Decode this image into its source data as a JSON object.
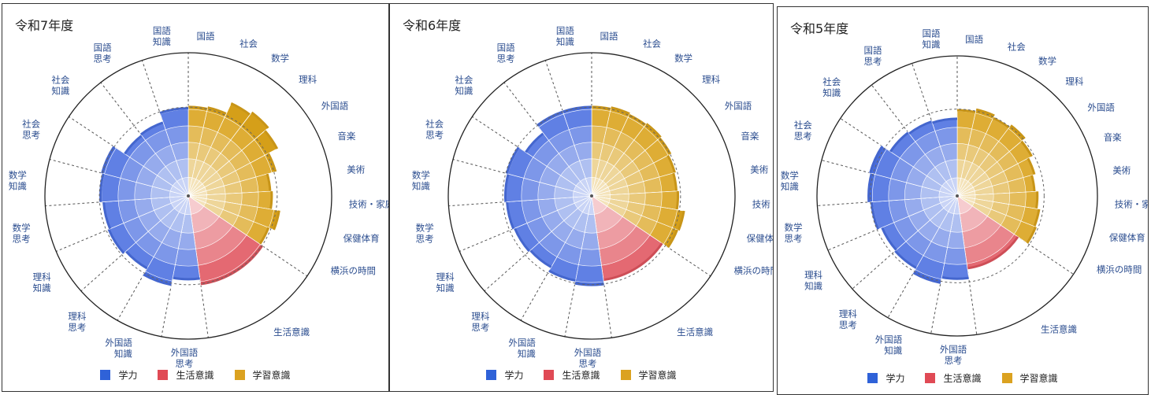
{
  "colors": {
    "gakuryoku": "#4a6fe0",
    "seikatsu": "#e0555f",
    "gakushu": "#d9a21a",
    "ring": "#222222",
    "label": "#2b4d8f"
  },
  "legend": [
    {
      "name": "学力",
      "color": "#2f62d8"
    },
    {
      "name": "生活意識",
      "color": "#e04a55"
    },
    {
      "name": "学習意識",
      "color": "#dba220"
    }
  ],
  "categories": [
    {
      "label": [
        "国語"
      ],
      "group": "gakushu"
    },
    {
      "label": [
        "社会"
      ],
      "group": "gakushu"
    },
    {
      "label": [
        "数学"
      ],
      "group": "gakushu"
    },
    {
      "label": [
        "理科"
      ],
      "group": "gakushu"
    },
    {
      "label": [
        "外国語"
      ],
      "group": "gakushu"
    },
    {
      "label": [
        "音楽"
      ],
      "group": "gakushu"
    },
    {
      "label": [
        "美術"
      ],
      "group": "gakushu"
    },
    {
      "label": [
        "技術・家庭"
      ],
      "group": "gakushu"
    },
    {
      "label": [
        "保健体育"
      ],
      "group": "gakushu"
    },
    {
      "label": [
        "横浜の時間"
      ],
      "group": "gakushu"
    },
    {
      "label": [
        "生活意識"
      ],
      "group": "seikatsu"
    },
    {
      "label": [
        "外国語",
        "思考"
      ],
      "group": "gakuryoku"
    },
    {
      "label": [
        "外国語",
        "知識"
      ],
      "group": "gakuryoku"
    },
    {
      "label": [
        "理科",
        "思考"
      ],
      "group": "gakuryoku"
    },
    {
      "label": [
        "理科",
        "知識"
      ],
      "group": "gakuryoku"
    },
    {
      "label": [
        "数学",
        "思考"
      ],
      "group": "gakuryoku"
    },
    {
      "label": [
        "数学",
        "知識"
      ],
      "group": "gakuryoku"
    },
    {
      "label": [
        "社会",
        "思考"
      ],
      "group": "gakuryoku"
    },
    {
      "label": [
        "社会",
        "知識"
      ],
      "group": "gakuryoku"
    },
    {
      "label": [
        "国語",
        "思考"
      ],
      "group": "gakuryoku"
    },
    {
      "label": [
        "国語",
        "知識"
      ],
      "group": "gakuryoku"
    }
  ],
  "chart_data": [
    {
      "type": "polar-area",
      "title": "令和7年度",
      "rmax": 100,
      "reference": 62,
      "series": [
        {
          "name": "学習意識",
          "segments": [
            {
              "category": "国語",
              "value": 63
            },
            {
              "category": "社会",
              "value": 64
            },
            {
              "category": "数学",
              "value": 72
            },
            {
              "category": "理科",
              "value": 74
            },
            {
              "category": "外国語",
              "value": 71
            },
            {
              "category": "音楽",
              "value": 64
            },
            {
              "category": "美術",
              "value": 58
            },
            {
              "category": "技術・家庭",
              "value": 59
            },
            {
              "category": "保健体育",
              "value": 65
            },
            {
              "category": "横浜の時間",
              "value": 61
            }
          ]
        },
        {
          "name": "生活意識",
          "segments": [
            {
              "category": "生活意識",
              "value": 63
            }
          ]
        },
        {
          "name": "学力",
          "segments": [
            {
              "category": "外国語思考",
              "value": 59
            },
            {
              "category": "外国語知識",
              "value": 64
            },
            {
              "category": "理科思考",
              "value": 59
            },
            {
              "category": "理科知識",
              "value": 61
            },
            {
              "category": "数学思考",
              "value": 60
            },
            {
              "category": "数学知識",
              "value": 62
            },
            {
              "category": "社会思考",
              "value": 63
            },
            {
              "category": "社会知識",
              "value": 54
            },
            {
              "category": "国語思考",
              "value": 55
            },
            {
              "category": "国語知識",
              "value": 62
            }
          ]
        }
      ]
    },
    {
      "type": "polar-area",
      "title": "令和6年度",
      "rmax": 100,
      "reference": 62,
      "series": [
        {
          "name": "学習意識",
          "segments": [
            {
              "category": "国語",
              "value": 63
            },
            {
              "category": "社会",
              "value": 64
            },
            {
              "category": "数学",
              "value": 63
            },
            {
              "category": "理科",
              "value": 64
            },
            {
              "category": "外国語",
              "value": 63
            },
            {
              "category": "音楽",
              "value": 61
            },
            {
              "category": "美術",
              "value": 60
            },
            {
              "category": "技術・家庭",
              "value": 61
            },
            {
              "category": "保健体育",
              "value": 66
            },
            {
              "category": "横浜の時間",
              "value": 65
            }
          ]
        },
        {
          "name": "生活意識",
          "segments": [
            {
              "category": "生活意識",
              "value": 60
            }
          ]
        },
        {
          "name": "学力",
          "segments": [
            {
              "category": "外国語思考",
              "value": 63
            },
            {
              "category": "外国語知識",
              "value": 61
            },
            {
              "category": "理科思考",
              "value": 58
            },
            {
              "category": "理科知識",
              "value": 59
            },
            {
              "category": "数学思考",
              "value": 60
            },
            {
              "category": "数学知識",
              "value": 61
            },
            {
              "category": "社会思考",
              "value": 62
            },
            {
              "category": "社会知識",
              "value": 56
            },
            {
              "category": "国語思考",
              "value": 63
            },
            {
              "category": "国語知識",
              "value": 63
            }
          ]
        }
      ]
    },
    {
      "type": "polar-area",
      "title": "令和5年度",
      "rmax": 100,
      "reference": 62,
      "series": [
        {
          "name": "学習意識",
          "segments": [
            {
              "category": "国語",
              "value": 62
            },
            {
              "category": "社会",
              "value": 64
            },
            {
              "category": "数学",
              "value": 62
            },
            {
              "category": "理科",
              "value": 64
            },
            {
              "category": "外国語",
              "value": 61
            },
            {
              "category": "音楽",
              "value": 58
            },
            {
              "category": "美術",
              "value": 56
            },
            {
              "category": "技術・家庭",
              "value": 58
            },
            {
              "category": "保健体育",
              "value": 60
            },
            {
              "category": "横浜の時間",
              "value": 61
            }
          ]
        },
        {
          "name": "生活意識",
          "segments": [
            {
              "category": "生活意識",
              "value": 53
            }
          ]
        },
        {
          "name": "学力",
          "segments": [
            {
              "category": "外国語思考",
              "value": 60
            },
            {
              "category": "外国語知識",
              "value": 64
            },
            {
              "category": "理科思考",
              "value": 60
            },
            {
              "category": "理科知識",
              "value": 59
            },
            {
              "category": "数学思考",
              "value": 62
            },
            {
              "category": "数学知識",
              "value": 64
            },
            {
              "category": "社会思考",
              "value": 65
            },
            {
              "category": "社会知識",
              "value": 58
            },
            {
              "category": "国語思考",
              "value": 57
            },
            {
              "category": "国語知識",
              "value": 56
            }
          ]
        }
      ]
    }
  ]
}
